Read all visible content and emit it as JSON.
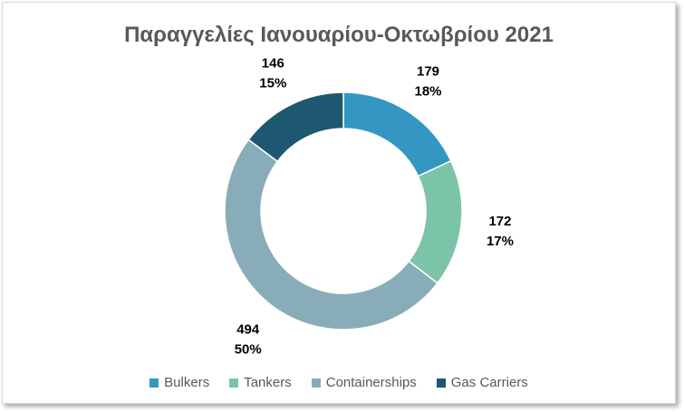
{
  "chart_data": {
    "type": "pie",
    "subtype": "donut",
    "title": "Παραγγελίες Ιανουαρίου-Οκτωβρίου 2021",
    "categories": [
      "Bulkers",
      "Tankers",
      "Containerships",
      "Gas Carriers"
    ],
    "values": [
      179,
      172,
      494,
      146
    ],
    "percent_labels": [
      "18%",
      "17%",
      "50%",
      "15%"
    ],
    "colors": [
      "#3397c2",
      "#7cc4a8",
      "#89adb8",
      "#1e5770"
    ],
    "legend_position": "bottom"
  }
}
